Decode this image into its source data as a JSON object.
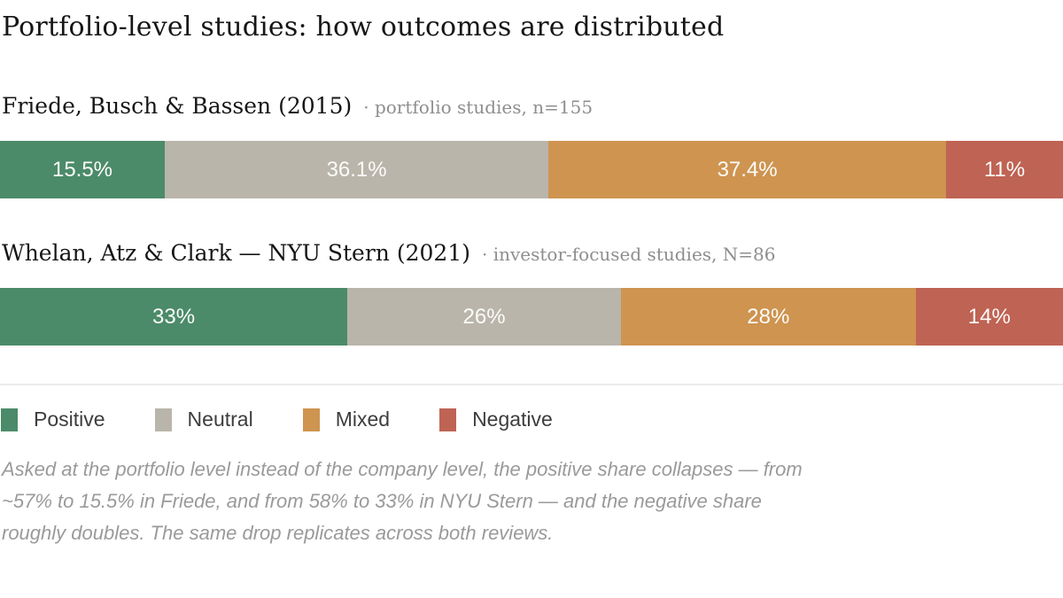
{
  "title": "Portfolio-level studies: how outcomes are distributed",
  "colors": {
    "positive": "#4b8b69",
    "neutral": "#b9b5aa",
    "mixed": "#ce9450",
    "negative": "#bf6354"
  },
  "chart_data": [
    {
      "type": "bar",
      "title": "Friede, Busch & Bassen (2015)",
      "subtitle": "· portfolio studies, n=155",
      "categories": [
        "Positive",
        "Neutral",
        "Mixed",
        "Negative"
      ],
      "values": [
        15.5,
        36.1,
        37.4,
        11
      ],
      "labels": [
        "15.5%",
        "36.1%",
        "37.4%",
        "11%"
      ],
      "layout": "stacked horizontal bar, full width, values as percent shares"
    },
    {
      "type": "bar",
      "title": "Whelan, Atz & Clark — NYU Stern (2021)",
      "subtitle": "· investor-focused studies, N=86",
      "categories": [
        "Positive",
        "Neutral",
        "Mixed",
        "Negative"
      ],
      "values": [
        33,
        26,
        28,
        14
      ],
      "labels": [
        "33%",
        "26%",
        "28%",
        "14%"
      ],
      "layout": "stacked horizontal bar, full width, values as percent shares"
    }
  ],
  "legend": [
    {
      "label": "Positive",
      "color": "#4b8b69"
    },
    {
      "label": "Neutral",
      "color": "#b9b5aa"
    },
    {
      "label": "Mixed",
      "color": "#ce9450"
    },
    {
      "label": "Negative",
      "color": "#bf6354"
    }
  ],
  "footnote": "Asked at the portfolio level instead of the company level, the positive share collapses — from ~57% to 15.5% in Friede, and from 58% to 33% in NYU Stern — and the negative share roughly doubles. The same drop replicates across both reviews."
}
